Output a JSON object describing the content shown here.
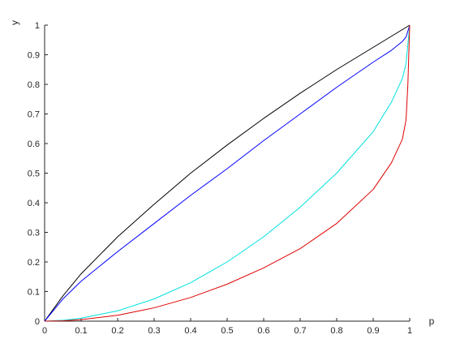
{
  "chart_data": {
    "type": "line",
    "title": "",
    "xlabel": "p",
    "ylabel": "y",
    "xlim": [
      0,
      1
    ],
    "ylim": [
      0,
      1
    ],
    "xticks": [
      "0",
      "0.1",
      "0.2",
      "0.3",
      "0.4",
      "0.5",
      "0.6",
      "0.7",
      "0.8",
      "0.9",
      "1"
    ],
    "yticks": [
      "0",
      "0.1",
      "0.2",
      "0.3",
      "0.4",
      "0.5",
      "0.6",
      "0.7",
      "0.8",
      "0.9",
      "1"
    ],
    "grid": false,
    "legend": "none",
    "series": [
      {
        "color": "#000000",
        "x": [
          0,
          0.05,
          0.1,
          0.2,
          0.3,
          0.4,
          0.5,
          0.6,
          0.7,
          0.8,
          0.9,
          1.0
        ],
        "y": [
          0,
          0.085,
          0.16,
          0.285,
          0.395,
          0.5,
          0.595,
          0.685,
          0.77,
          0.85,
          0.925,
          1.0
        ]
      },
      {
        "color": "#0000ff",
        "x": [
          0,
          0.05,
          0.1,
          0.2,
          0.3,
          0.4,
          0.5,
          0.6,
          0.7,
          0.8,
          0.9,
          0.95,
          0.98,
          0.99,
          1.0
        ],
        "y": [
          0,
          0.075,
          0.135,
          0.235,
          0.33,
          0.425,
          0.515,
          0.61,
          0.7,
          0.79,
          0.875,
          0.915,
          0.945,
          0.96,
          1.0
        ]
      },
      {
        "color": "#00e0e0",
        "x": [
          0,
          0.05,
          0.1,
          0.2,
          0.3,
          0.4,
          0.5,
          0.6,
          0.7,
          0.8,
          0.9,
          0.95,
          0.98,
          0.99,
          1.0
        ],
        "y": [
          0,
          0.003,
          0.01,
          0.035,
          0.075,
          0.13,
          0.2,
          0.285,
          0.385,
          0.5,
          0.64,
          0.74,
          0.82,
          0.87,
          1.0
        ]
      },
      {
        "color": "#e00000",
        "x": [
          0,
          0.05,
          0.1,
          0.2,
          0.3,
          0.4,
          0.5,
          0.6,
          0.7,
          0.8,
          0.9,
          0.95,
          0.98,
          0.99,
          0.995,
          1.0
        ],
        "y": [
          0,
          0.001,
          0.005,
          0.02,
          0.045,
          0.08,
          0.125,
          0.18,
          0.245,
          0.33,
          0.445,
          0.535,
          0.615,
          0.68,
          0.8,
          1.0
        ]
      }
    ]
  }
}
